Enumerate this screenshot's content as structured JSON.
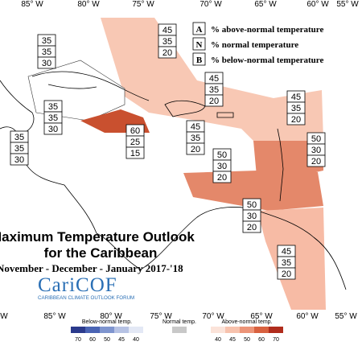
{
  "longitude_labels_top": [
    "85° W",
    "80° W",
    "75° W",
    "70° W",
    "65° W",
    "60° W",
    "55° W"
  ],
  "longitude_labels_bottom": [
    "W",
    "85° W",
    "80° W",
    "75° W",
    "70° W",
    "65° W",
    "60° W",
    "55° W"
  ],
  "legend": {
    "items": [
      {
        "key": "A",
        "label": "% above-normal temperature"
      },
      {
        "key": "N",
        "label": "% normal temperature"
      },
      {
        "key": "B",
        "label": "% below-normal temperature"
      }
    ]
  },
  "probability_boxes": [
    [
      45,
      35,
      20
    ],
    [
      35,
      35,
      30
    ],
    [
      45,
      35,
      20
    ],
    [
      35,
      35,
      30
    ],
    [
      45,
      35,
      20
    ],
    [
      45,
      35,
      20
    ],
    [
      60,
      25,
      15
    ],
    [
      35,
      35,
      30
    ],
    [
      50,
      30,
      20
    ],
    [
      50,
      30,
      20
    ],
    [
      50,
      30,
      20
    ],
    [
      45,
      35,
      20
    ]
  ],
  "title": {
    "line1": "Maximum Temperature Outlook",
    "line2": "for the Caribbean",
    "line3": "November - December - January 2017-'18"
  },
  "logo": {
    "name": "CariCOF",
    "tagline": "CARIBBEAN CLIMATE OUTLOOK FORUM"
  },
  "color_bar": {
    "below": {
      "title": "Below-normal temp.",
      "ticks": [
        70,
        60,
        50,
        45,
        40
      ]
    },
    "normal": {
      "title": "Normal temp."
    },
    "above": {
      "title": "Above-normal temp.",
      "ticks": [
        40,
        45,
        50,
        60,
        70
      ]
    }
  }
}
